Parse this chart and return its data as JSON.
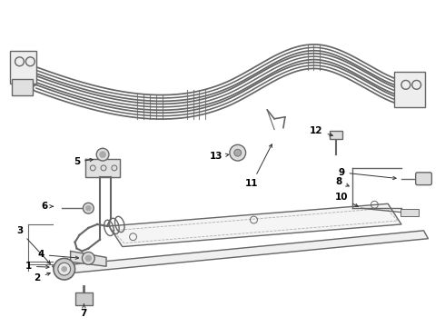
{
  "background_color": "#ffffff",
  "line_color": "#666666",
  "label_color": "#000000",
  "figsize": [
    4.9,
    3.6
  ],
  "dpi": 100,
  "arrow_color": "#333333",
  "font_size": 7.5,
  "line_width": 1.0,
  "tube_lw": 2.8
}
